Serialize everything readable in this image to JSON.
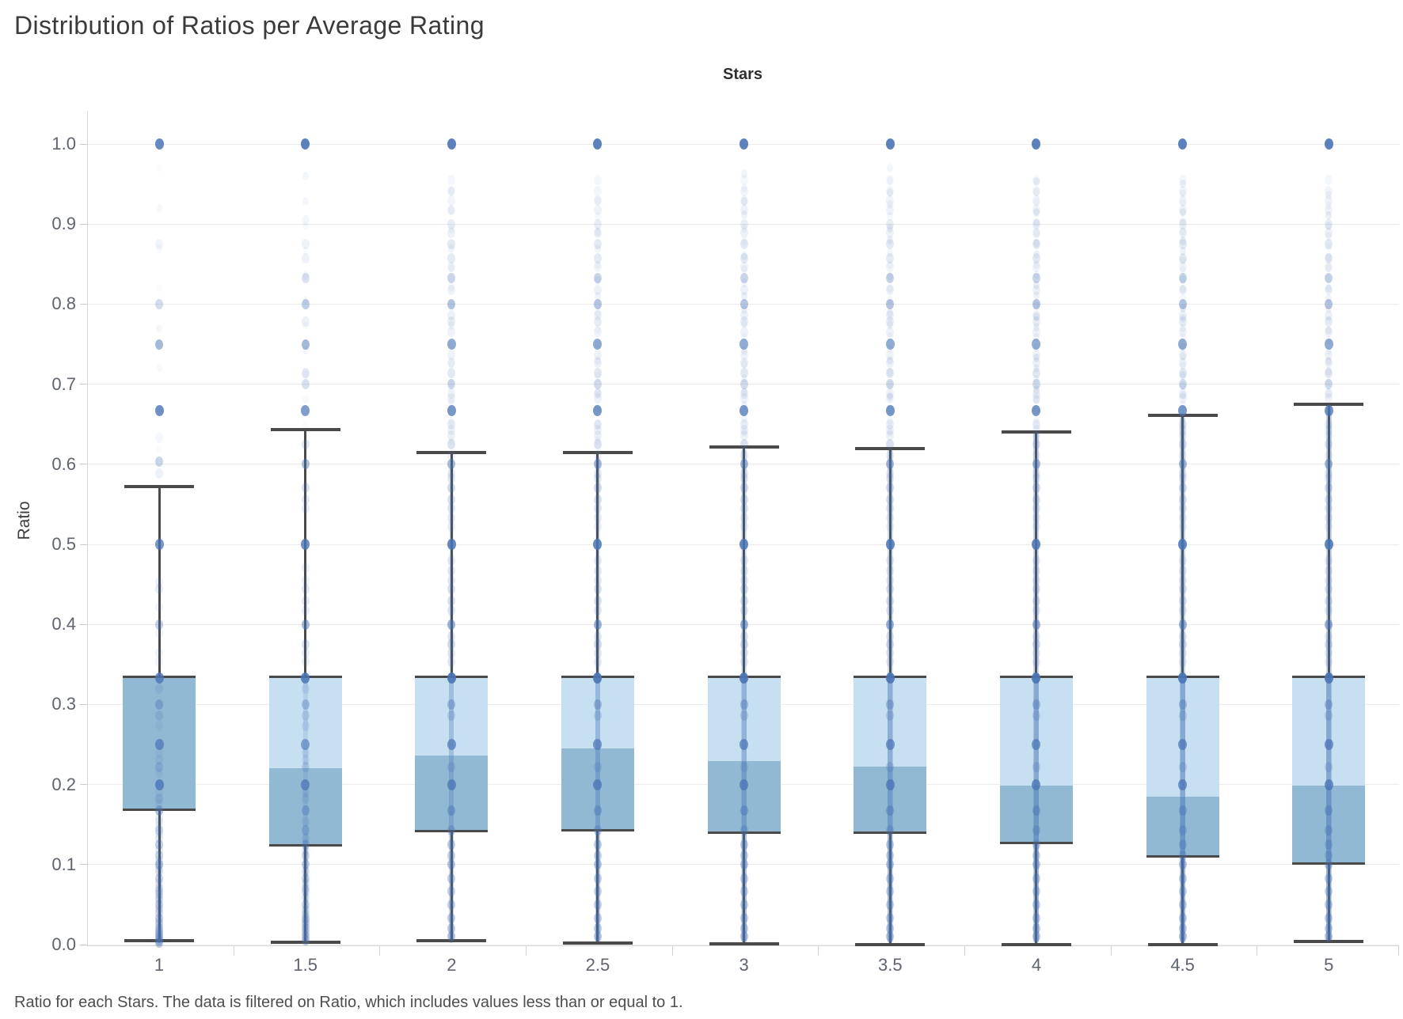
{
  "title": "Distribution of Ratios per Average Rating",
  "caption": "Ratio for each Stars. The data is filtered on Ratio, which includes values less than or equal to 1.",
  "chart_data": {
    "type": "boxplot",
    "subtype": "box-and-whisker with overlaid scatter column per category",
    "title": "Distribution of Ratios per Average Rating",
    "top_axis_label": "Stars",
    "ylabel": "Ratio",
    "xlabel": "Stars",
    "ylim": [
      0.0,
      1.0
    ],
    "grid": "horizontal",
    "legend": "none",
    "y_ticks": [
      {
        "v": 1.0,
        "label": "1.0"
      },
      {
        "v": 0.9,
        "label": "0.9"
      },
      {
        "v": 0.8,
        "label": "0.8"
      },
      {
        "v": 0.7,
        "label": "0.7"
      },
      {
        "v": 0.6,
        "label": "0.6"
      },
      {
        "v": 0.5,
        "label": "0.5"
      },
      {
        "v": 0.4,
        "label": "0.4"
      },
      {
        "v": 0.3,
        "label": "0.3"
      },
      {
        "v": 0.2,
        "label": "0.2"
      },
      {
        "v": 0.1,
        "label": "0.1"
      },
      {
        "v": 0.0,
        "label": "0.0"
      }
    ],
    "categories": [
      "1",
      "1.5",
      "2",
      "2.5",
      "3",
      "3.5",
      "4",
      "4.5",
      "5"
    ],
    "colors": {
      "box_upper": "#c7e0f1",
      "box_lower": "#92b9d4",
      "box_border": "#4a4a4a",
      "whisker": "#4a4a4a",
      "dot": "#4a74b6",
      "streak": "#4a78b8",
      "gridline": "#ececec",
      "axis_line": "#d9d9d9",
      "tick_label": "#5f646e",
      "title_text": "#3b3b3b",
      "caption_text": "#4e4e4e"
    },
    "boxes": [
      {
        "category": "1",
        "whisker_low": 0.005,
        "q1": 0.168,
        "median": 0.334,
        "q3": 0.334,
        "whisker_high": 0.572,
        "use_base_dots": false,
        "streaks": [
          [
            0.1,
            5,
            0.18
          ]
        ],
        "ladders": [
          [
            0.62,
            0.97,
            0.05,
            0.04
          ]
        ],
        "dots": [
          [
            1.0,
            0.85
          ],
          [
            0.875,
            0.08
          ],
          [
            0.8,
            0.25
          ],
          [
            0.75,
            0.5
          ],
          [
            0.667,
            0.8
          ],
          [
            0.633,
            0.06
          ],
          [
            0.603,
            0.3
          ],
          [
            0.588,
            0.1
          ],
          [
            0.5,
            0.75
          ],
          [
            0.453,
            0.1
          ],
          [
            0.444,
            0.15
          ],
          [
            0.421,
            0.08
          ],
          [
            0.4,
            0.35
          ],
          [
            0.389,
            0.08
          ],
          [
            0.364,
            0.1
          ],
          [
            0.353,
            0.08
          ],
          [
            0.333,
            0.8
          ],
          [
            0.32,
            0.15
          ],
          [
            0.3,
            0.4
          ],
          [
            0.286,
            0.2
          ],
          [
            0.273,
            0.1
          ],
          [
            0.25,
            0.7
          ],
          [
            0.24,
            0.1
          ],
          [
            0.231,
            0.12
          ],
          [
            0.222,
            0.25
          ],
          [
            0.214,
            0.1
          ],
          [
            0.2,
            0.8
          ],
          [
            0.19,
            0.1
          ],
          [
            0.182,
            0.2
          ],
          [
            0.176,
            0.1
          ],
          [
            0.167,
            0.45
          ],
          [
            0.158,
            0.12
          ],
          [
            0.154,
            0.12
          ],
          [
            0.148,
            0.1
          ],
          [
            0.143,
            0.3
          ],
          [
            0.138,
            0.1
          ],
          [
            0.133,
            0.15
          ],
          [
            0.125,
            0.35
          ],
          [
            0.118,
            0.15
          ],
          [
            0.111,
            0.3
          ],
          [
            0.105,
            0.15
          ],
          [
            0.1,
            0.45
          ],
          [
            0.095,
            0.12
          ],
          [
            0.091,
            0.2
          ],
          [
            0.083,
            0.3
          ],
          [
            0.077,
            0.15
          ],
          [
            0.071,
            0.2
          ],
          [
            0.067,
            0.25
          ],
          [
            0.063,
            0.2
          ],
          [
            0.059,
            0.15
          ],
          [
            0.056,
            0.2
          ],
          [
            0.05,
            0.3
          ],
          [
            0.045,
            0.2
          ],
          [
            0.04,
            0.25
          ],
          [
            0.033,
            0.3
          ],
          [
            0.029,
            0.2
          ],
          [
            0.025,
            0.25
          ],
          [
            0.02,
            0.3
          ],
          [
            0.017,
            0.25
          ],
          [
            0.014,
            0.25
          ],
          [
            0.011,
            0.3
          ],
          [
            0.008,
            0.3
          ],
          [
            0.005,
            0.35
          ],
          [
            0.002,
            0.4
          ]
        ]
      },
      {
        "category": "1.5",
        "whisker_low": 0.003,
        "q1": 0.124,
        "median": 0.22,
        "q3": 0.334,
        "whisker_high": 0.643,
        "use_base_dots": false,
        "streaks": [
          [
            0.34,
            6,
            0.15
          ],
          [
            0.13,
            6,
            0.2
          ]
        ],
        "ladders": [
          [
            0.65,
            0.96,
            0.031,
            0.05
          ]
        ],
        "dots": [
          [
            1.0,
            0.9
          ],
          [
            0.905,
            0.06
          ],
          [
            0.875,
            0.1
          ],
          [
            0.857,
            0.09
          ],
          [
            0.833,
            0.2
          ],
          [
            0.8,
            0.35
          ],
          [
            0.778,
            0.1
          ],
          [
            0.75,
            0.5
          ],
          [
            0.714,
            0.14
          ],
          [
            0.7,
            0.22
          ],
          [
            0.667,
            0.7
          ],
          [
            0.625,
            0.16
          ],
          [
            0.6,
            0.45
          ],
          [
            0.571,
            0.2
          ],
          [
            0.556,
            0.14
          ],
          [
            0.545,
            0.12
          ],
          [
            0.5,
            0.8
          ],
          [
            0.471,
            0.1
          ],
          [
            0.455,
            0.1
          ],
          [
            0.444,
            0.15
          ],
          [
            0.429,
            0.14
          ],
          [
            0.417,
            0.12
          ],
          [
            0.4,
            0.5
          ],
          [
            0.375,
            0.2
          ],
          [
            0.364,
            0.13
          ],
          [
            0.353,
            0.11
          ],
          [
            0.333,
            0.85
          ],
          [
            0.32,
            0.14
          ],
          [
            0.3,
            0.35
          ],
          [
            0.286,
            0.2
          ],
          [
            0.273,
            0.14
          ],
          [
            0.25,
            0.6
          ],
          [
            0.24,
            0.13
          ],
          [
            0.231,
            0.13
          ],
          [
            0.222,
            0.2
          ],
          [
            0.2,
            0.7
          ],
          [
            0.19,
            0.12
          ],
          [
            0.182,
            0.15
          ],
          [
            0.167,
            0.4
          ],
          [
            0.154,
            0.14
          ],
          [
            0.143,
            0.3
          ],
          [
            0.133,
            0.14
          ],
          [
            0.125,
            0.3
          ],
          [
            0.118,
            0.12
          ],
          [
            0.111,
            0.28
          ],
          [
            0.1,
            0.35
          ],
          [
            0.091,
            0.2
          ],
          [
            0.083,
            0.28
          ],
          [
            0.077,
            0.16
          ],
          [
            0.071,
            0.2
          ],
          [
            0.067,
            0.22
          ],
          [
            0.059,
            0.18
          ],
          [
            0.05,
            0.28
          ],
          [
            0.043,
            0.2
          ],
          [
            0.038,
            0.2
          ],
          [
            0.033,
            0.3
          ],
          [
            0.029,
            0.22
          ],
          [
            0.025,
            0.25
          ],
          [
            0.02,
            0.3
          ],
          [
            0.015,
            0.28
          ],
          [
            0.01,
            0.32
          ],
          [
            0.005,
            0.35
          ]
        ]
      },
      {
        "category": "2",
        "whisker_low": 0.005,
        "q1": 0.142,
        "median": 0.236,
        "q3": 0.334,
        "whisker_high": 0.615,
        "use_base_dots": true,
        "streaks": [
          [
            0.6,
            6,
            0.12
          ],
          [
            0.34,
            6,
            0.22
          ]
        ],
        "ladders": [
          [
            0.63,
            0.945,
            0.024,
            0.06
          ]
        ],
        "dots": []
      },
      {
        "category": "2.5",
        "whisker_low": 0.002,
        "q1": 0.143,
        "median": 0.245,
        "q3": 0.334,
        "whisker_high": 0.615,
        "use_base_dots": true,
        "streaks": [
          [
            0.61,
            6,
            0.16
          ],
          [
            0.34,
            6,
            0.26
          ]
        ],
        "ladders": [
          [
            0.63,
            0.93,
            0.02,
            0.07
          ]
        ],
        "dots": []
      },
      {
        "category": "3",
        "whisker_low": 0.001,
        "q1": 0.14,
        "median": 0.229,
        "q3": 0.334,
        "whisker_high": 0.622,
        "use_base_dots": true,
        "streaks": [
          [
            0.62,
            7,
            0.2
          ],
          [
            0.34,
            6,
            0.28
          ]
        ],
        "ladders": [
          [
            0.64,
            0.975,
            0.017,
            0.08
          ]
        ],
        "dots": []
      },
      {
        "category": "3.5",
        "whisker_low": 0.0,
        "q1": 0.14,
        "median": 0.222,
        "q3": 0.334,
        "whisker_high": 0.62,
        "use_base_dots": true,
        "streaks": [
          [
            0.62,
            7,
            0.24
          ],
          [
            0.34,
            6,
            0.3
          ]
        ],
        "ladders": [
          [
            0.64,
            0.98,
            0.015,
            0.08
          ]
        ],
        "dots": []
      },
      {
        "category": "4",
        "whisker_low": 0.0,
        "q1": 0.127,
        "median": 0.199,
        "q3": 0.334,
        "whisker_high": 0.64,
        "use_base_dots": true,
        "streaks": [
          [
            0.64,
            7,
            0.28
          ],
          [
            0.34,
            6,
            0.32
          ]
        ],
        "ladders": [
          [
            0.655,
            0.96,
            0.013,
            0.09
          ]
        ],
        "dots": []
      },
      {
        "category": "4.5",
        "whisker_low": 0.0,
        "q1": 0.11,
        "median": 0.185,
        "q3": 0.334,
        "whisker_high": 0.661,
        "use_base_dots": true,
        "streaks": [
          [
            0.66,
            7,
            0.3
          ],
          [
            0.34,
            6,
            0.33
          ]
        ],
        "ladders": [
          [
            0.675,
            0.955,
            0.012,
            0.09
          ]
        ],
        "dots": []
      },
      {
        "category": "5",
        "whisker_low": 0.004,
        "q1": 0.101,
        "median": 0.199,
        "q3": 0.334,
        "whisker_high": 0.675,
        "use_base_dots": true,
        "streaks": [
          [
            0.675,
            7,
            0.3
          ],
          [
            0.34,
            6,
            0.33
          ]
        ],
        "ladders": [
          [
            0.69,
            0.94,
            0.013,
            0.08
          ]
        ],
        "dots": []
      }
    ],
    "base_dots": [
      [
        1.0,
        0.9
      ],
      [
        0.955,
        0.06
      ],
      [
        0.941,
        0.07
      ],
      [
        0.929,
        0.08
      ],
      [
        0.917,
        0.09
      ],
      [
        0.9,
        0.12
      ],
      [
        0.889,
        0.1
      ],
      [
        0.875,
        0.15
      ],
      [
        0.857,
        0.14
      ],
      [
        0.846,
        0.08
      ],
      [
        0.833,
        0.3
      ],
      [
        0.818,
        0.1
      ],
      [
        0.8,
        0.42
      ],
      [
        0.786,
        0.1
      ],
      [
        0.778,
        0.12
      ],
      [
        0.765,
        0.09
      ],
      [
        0.75,
        0.6
      ],
      [
        0.737,
        0.09
      ],
      [
        0.727,
        0.1
      ],
      [
        0.714,
        0.16
      ],
      [
        0.7,
        0.26
      ],
      [
        0.688,
        0.1
      ],
      [
        0.682,
        0.09
      ],
      [
        0.667,
        0.75
      ],
      [
        0.65,
        0.12
      ],
      [
        0.643,
        0.1
      ],
      [
        0.636,
        0.1
      ],
      [
        0.625,
        0.2
      ],
      [
        0.611,
        0.1
      ],
      [
        0.6,
        0.5
      ],
      [
        0.588,
        0.13
      ],
      [
        0.583,
        0.14
      ],
      [
        0.571,
        0.25
      ],
      [
        0.556,
        0.2
      ],
      [
        0.545,
        0.17
      ],
      [
        0.533,
        0.13
      ],
      [
        0.522,
        0.1
      ],
      [
        0.5,
        0.85
      ],
      [
        0.48,
        0.14
      ],
      [
        0.467,
        0.15
      ],
      [
        0.455,
        0.14
      ],
      [
        0.444,
        0.2
      ],
      [
        0.429,
        0.2
      ],
      [
        0.417,
        0.17
      ],
      [
        0.4,
        0.55
      ],
      [
        0.385,
        0.16
      ],
      [
        0.375,
        0.25
      ],
      [
        0.364,
        0.16
      ],
      [
        0.353,
        0.14
      ],
      [
        0.333,
        0.9
      ],
      [
        0.3,
        0.4
      ],
      [
        0.286,
        0.25
      ],
      [
        0.25,
        0.7
      ],
      [
        0.222,
        0.25
      ],
      [
        0.2,
        0.75
      ],
      [
        0.167,
        0.45
      ],
      [
        0.143,
        0.35
      ],
      [
        0.125,
        0.35
      ],
      [
        0.111,
        0.3
      ],
      [
        0.1,
        0.4
      ],
      [
        0.083,
        0.33
      ],
      [
        0.067,
        0.3
      ],
      [
        0.05,
        0.33
      ],
      [
        0.033,
        0.35
      ],
      [
        0.02,
        0.35
      ],
      [
        0.01,
        0.4
      ]
    ]
  }
}
